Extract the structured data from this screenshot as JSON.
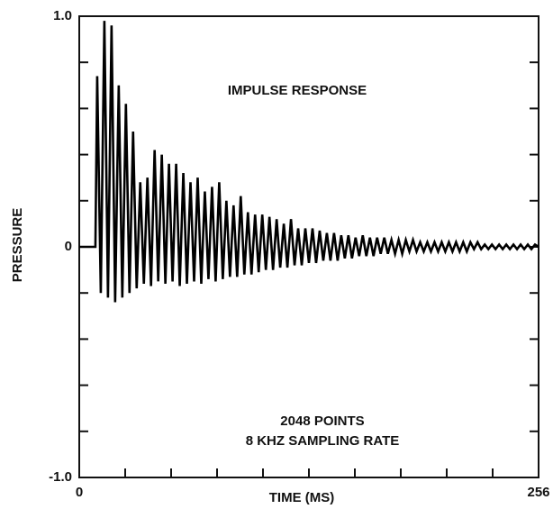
{
  "chart_data": {
    "type": "line",
    "title": "IMPULSE RESPONSE",
    "annotations": [
      "2048 POINTS",
      "8 KHZ SAMPLING RATE"
    ],
    "xlabel": "TIME (MS)",
    "ylabel": "PRESSURE",
    "xlim": [
      0,
      256
    ],
    "ylim": [
      -1,
      1
    ],
    "xticks": [
      0,
      256
    ],
    "xminor_ticks": [
      25.6,
      51.2,
      76.8,
      102.4,
      128,
      153.6,
      179.2,
      204.8,
      230.4
    ],
    "yticks": [
      {
        "value": 1,
        "label": "1.0"
      },
      0,
      {
        "value": -1,
        "label": "-1.0"
      }
    ],
    "yminor_ticks": [
      0.8,
      0.6,
      0.4,
      0.2,
      -0.2,
      -0.4,
      -0.6,
      -0.8
    ],
    "x": [
      0,
      9,
      10,
      12,
      14,
      16,
      18,
      20,
      22,
      24,
      26,
      28,
      30,
      32,
      34,
      36,
      38,
      40,
      42,
      44,
      46,
      48,
      50,
      52,
      54,
      56,
      58,
      60,
      62,
      64,
      66,
      68,
      70,
      72,
      74,
      76,
      78,
      80,
      82,
      84,
      86,
      88,
      90,
      92,
      94,
      96,
      98,
      100,
      102,
      104,
      106,
      108,
      110,
      112,
      114,
      116,
      118,
      120,
      122,
      124,
      126,
      128,
      130,
      132,
      134,
      136,
      138,
      140,
      142,
      144,
      146,
      148,
      150,
      152,
      154,
      156,
      158,
      160,
      162,
      164,
      166,
      168,
      170,
      172,
      174,
      176,
      178,
      180,
      182,
      184,
      186,
      188,
      190,
      192,
      194,
      196,
      198,
      200,
      202,
      204,
      206,
      208,
      210,
      212,
      214,
      216,
      218,
      220,
      222,
      224,
      226,
      228,
      230,
      232,
      234,
      236,
      238,
      240,
      242,
      244,
      246,
      248,
      250,
      252,
      254,
      256
    ],
    "series": [
      {
        "color": "#000000",
        "values": [
          0,
          0,
          0.74,
          -0.2,
          0.98,
          -0.22,
          0.96,
          -0.24,
          0.7,
          -0.22,
          0.62,
          -0.2,
          0.5,
          -0.18,
          0.28,
          -0.16,
          0.3,
          -0.17,
          0.42,
          -0.15,
          0.4,
          -0.16,
          0.36,
          -0.15,
          0.36,
          -0.17,
          0.32,
          -0.16,
          0.28,
          -0.15,
          0.3,
          -0.16,
          0.24,
          -0.14,
          0.26,
          -0.15,
          0.28,
          -0.14,
          0.2,
          -0.13,
          0.18,
          -0.13,
          0.22,
          -0.12,
          0.15,
          -0.12,
          0.14,
          -0.11,
          0.14,
          -0.1,
          0.13,
          -0.1,
          0.12,
          -0.09,
          0.1,
          -0.09,
          0.12,
          -0.08,
          0.08,
          -0.08,
          0.08,
          -0.07,
          0.08,
          -0.07,
          0.07,
          -0.06,
          0.06,
          -0.06,
          0.06,
          -0.06,
          0.05,
          -0.05,
          0.05,
          -0.05,
          0.04,
          -0.04,
          0.05,
          -0.04,
          0.04,
          -0.04,
          0.04,
          -0.03,
          0.04,
          -0.03,
          0.03,
          -0.03,
          0.03,
          -0.03,
          0.03,
          -0.02,
          0.03,
          -0.02,
          0.02,
          -0.02,
          0.02,
          -0.02,
          0.02,
          -0.02,
          0.02,
          -0.02,
          0.02,
          -0.02,
          0.02,
          -0.02,
          0.02,
          -0.02,
          0.02,
          -0.01,
          0.02,
          -0.01,
          0.01,
          -0.01,
          0.01,
          -0.01,
          0.01,
          -0.01,
          0.01,
          -0.01,
          0.01,
          -0.01,
          0.01,
          -0.01,
          0.01,
          -0.01,
          0.01,
          0
        ]
      }
    ]
  }
}
